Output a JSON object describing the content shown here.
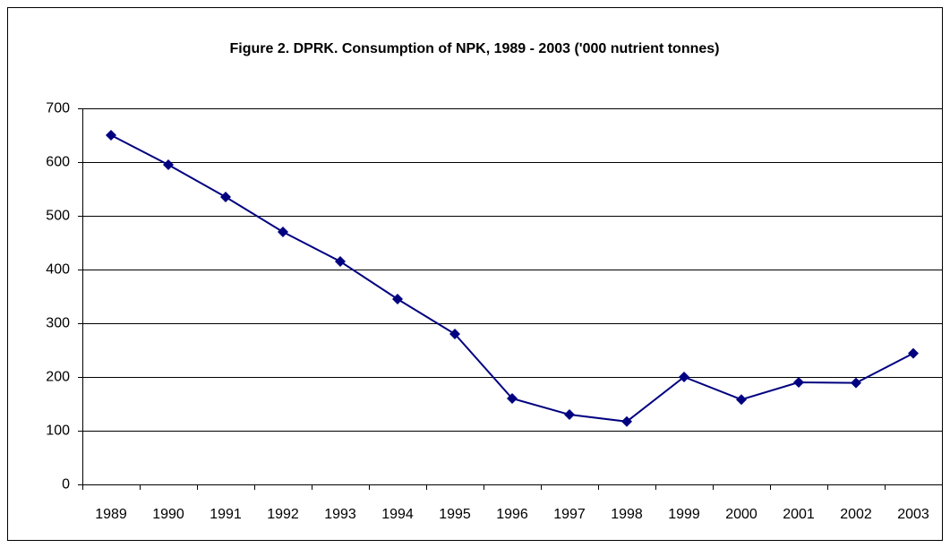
{
  "chart_data": {
    "type": "line",
    "title": "Figure 2.  DPRK. Consumption of NPK, 1989 - 2003 ('000 nutrient tonnes)",
    "categories": [
      "1989",
      "1990",
      "1991",
      "1992",
      "1993",
      "1994",
      "1995",
      "1996",
      "1997",
      "1998",
      "1999",
      "2000",
      "2001",
      "2002",
      "2003"
    ],
    "series": [
      {
        "name": "NPK",
        "color": "#000080",
        "values": [
          650,
          595,
          535,
          470,
          415,
          345,
          280,
          160,
          130,
          117,
          200,
          158,
          190,
          189,
          244
        ]
      }
    ],
    "ylim": [
      0,
      700
    ],
    "yticks": [
      0,
      100,
      200,
      300,
      400,
      500,
      600,
      700
    ],
    "grid": true
  }
}
